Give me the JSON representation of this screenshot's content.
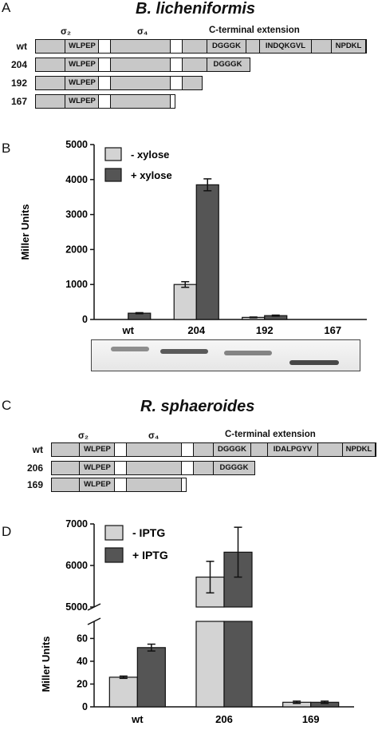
{
  "panels": {
    "A": {
      "letter": "A",
      "species": "B. licheniformis",
      "domain_labels": {
        "sigma2": "σ₂",
        "sigma4": "σ₄",
        "cterm": "C-terminal extension"
      },
      "rows": [
        {
          "label": "wt",
          "motifs": [
            "WLPEP",
            "DGGGK",
            "INDQKGVL",
            "NPDKL"
          ]
        },
        {
          "label": "204",
          "motifs": [
            "WLPEP",
            "DGGGK"
          ]
        },
        {
          "label": "192",
          "motifs": [
            "WLPEP"
          ]
        },
        {
          "label": "167",
          "motifs": [
            "WLPEP"
          ]
        }
      ]
    },
    "B": {
      "letter": "B"
    },
    "C": {
      "letter": "C",
      "species": "R. sphaeroides",
      "domain_labels": {
        "sigma2": "σ₂",
        "sigma4": "σ₄",
        "cterm": "C-terminal extension"
      },
      "rows": [
        {
          "label": "wt",
          "motifs": [
            "WLPEP",
            "DGGGK",
            "IDALPGYV",
            "NPDKL"
          ]
        },
        {
          "label": "206",
          "motifs": [
            "WLPEP",
            "DGGGK"
          ]
        },
        {
          "label": "169",
          "motifs": [
            "WLPEP"
          ]
        }
      ]
    },
    "D": {
      "letter": "D"
    }
  },
  "chart_data": [
    {
      "type": "bar",
      "panel": "B",
      "categories": [
        "wt",
        "204",
        "192",
        "167"
      ],
      "series": [
        {
          "name": "- xylose",
          "values": [
            0,
            1000,
            60,
            0
          ],
          "errors": [
            0,
            80,
            10,
            0
          ],
          "color": "#d3d3d3"
        },
        {
          "name": "+ xylose",
          "values": [
            180,
            3850,
            110,
            0
          ],
          "errors": [
            15,
            170,
            15,
            0
          ],
          "color": "#555555"
        }
      ],
      "ylabel": "Miller Units",
      "ylim": [
        0,
        5000
      ],
      "yticks": [
        0,
        1000,
        2000,
        3000,
        4000,
        5000
      ],
      "legend": "top-left",
      "grid": false
    },
    {
      "type": "bar",
      "panel": "D",
      "categories": [
        "wt",
        "206",
        "169"
      ],
      "series": [
        {
          "name": "- IPTG",
          "values": [
            26,
            5720,
            4
          ],
          "errors": [
            1,
            380,
            1
          ],
          "color": "#d3d3d3"
        },
        {
          "name": "+ IPTG",
          "values": [
            52,
            6320,
            4
          ],
          "errors": [
            3,
            600,
            1
          ],
          "color": "#555555"
        }
      ],
      "ylabel": "Miller Units",
      "broken_axis": {
        "lower": [
          0,
          75
        ],
        "upper": [
          5000,
          7000
        ]
      },
      "yticks_lower": [
        0,
        20,
        40,
        60
      ],
      "yticks_upper": [
        5000,
        6000,
        7000
      ],
      "legend": "top-left",
      "grid": false
    }
  ]
}
